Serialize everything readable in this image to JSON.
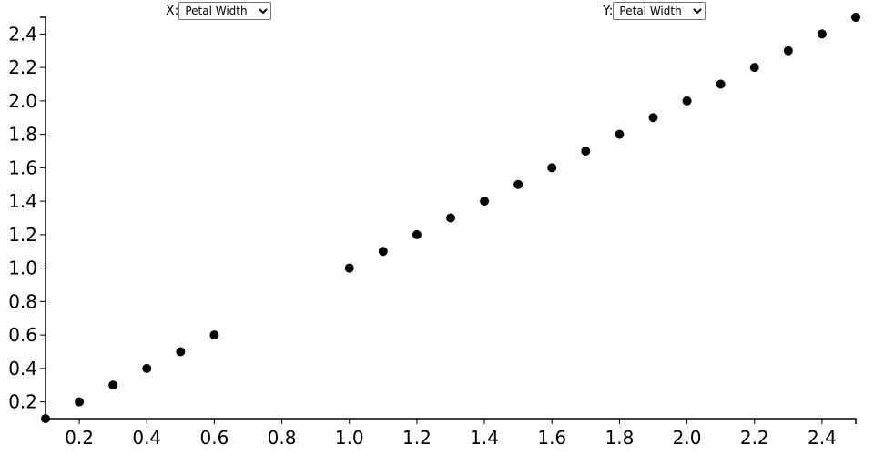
{
  "controls": {
    "x_label": "X:",
    "x_selected": "Petal Width",
    "y_label": "Y:",
    "y_selected": "Petal Width"
  },
  "chart_data": {
    "type": "scatter",
    "xlim": [
      0.1,
      2.5
    ],
    "ylim": [
      0.1,
      2.5
    ],
    "xticks": [
      "0.2",
      "0.4",
      "0.6",
      "0.8",
      "1.0",
      "1.2",
      "1.4",
      "1.6",
      "1.8",
      "2.0",
      "2.2",
      "2.4"
    ],
    "yticks": [
      "0.2",
      "0.4",
      "0.6",
      "0.8",
      "1.0",
      "1.2",
      "1.4",
      "1.6",
      "1.8",
      "2.0",
      "2.2",
      "2.4"
    ],
    "point_color": "#000000",
    "points": [
      [
        0.1,
        0.1
      ],
      [
        0.2,
        0.2
      ],
      [
        0.3,
        0.3
      ],
      [
        0.4,
        0.4
      ],
      [
        0.5,
        0.5
      ],
      [
        0.6,
        0.6
      ],
      [
        1.0,
        1.0
      ],
      [
        1.1,
        1.1
      ],
      [
        1.2,
        1.2
      ],
      [
        1.3,
        1.3
      ],
      [
        1.4,
        1.4
      ],
      [
        1.5,
        1.5
      ],
      [
        1.6,
        1.6
      ],
      [
        1.7,
        1.7
      ],
      [
        1.8,
        1.8
      ],
      [
        1.9,
        1.9
      ],
      [
        2.0,
        2.0
      ],
      [
        2.1,
        2.1
      ],
      [
        2.2,
        2.2
      ],
      [
        2.3,
        2.3
      ],
      [
        2.4,
        2.4
      ],
      [
        2.5,
        2.5
      ]
    ]
  }
}
